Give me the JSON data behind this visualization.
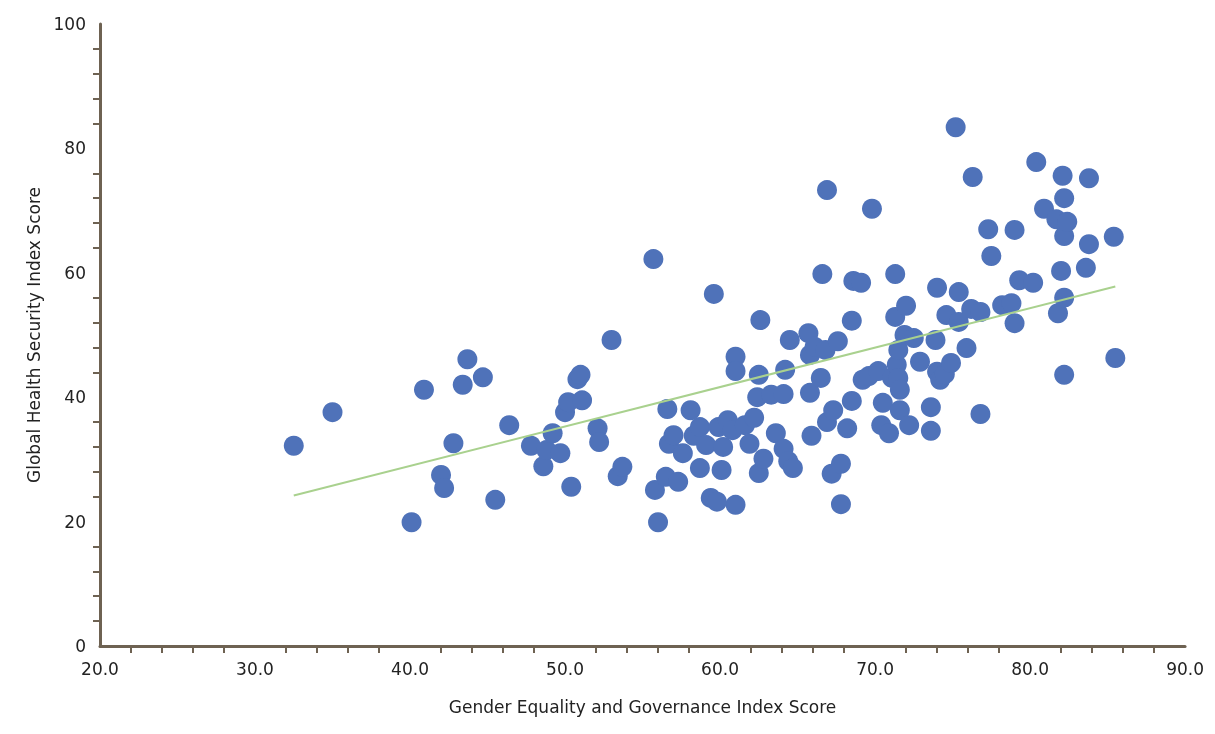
{
  "chart_data": {
    "type": "scatter",
    "xlabel": "Gender Equality and Governance Index Score",
    "ylabel": "Global Health Security Index Score",
    "xlim": [
      20,
      90
    ],
    "xticks": [
      {
        "value": 20,
        "label": "20.0"
      },
      {
        "value": 30,
        "label": "30.0"
      },
      {
        "value": 40,
        "label": "40.0"
      },
      {
        "value": 50,
        "label": "50.0"
      },
      {
        "value": 60,
        "label": "60.0"
      },
      {
        "value": 70,
        "label": "70.0"
      },
      {
        "value": 80,
        "label": "80.0"
      },
      {
        "value": 90,
        "label": "90.0"
      }
    ],
    "ylim": [
      0,
      100
    ],
    "yticks": [
      0,
      20,
      40,
      60,
      80,
      100
    ],
    "grid": false,
    "marker": "circle",
    "series": [
      {
        "color": "#4f72b9",
        "x": [
          32.5,
          35.0,
          40.1,
          40.9,
          42.0,
          42.2,
          42.8,
          43.4,
          43.7,
          44.7,
          45.5,
          46.4,
          47.8,
          48.6,
          48.8,
          49.2,
          49.7,
          50.0,
          50.2,
          50.4,
          50.8,
          51.0,
          51.1,
          52.1,
          52.2,
          53.0,
          53.4,
          53.7,
          55.7,
          55.8,
          56.0,
          56.5,
          56.6,
          56.7,
          57.0,
          57.3,
          57.6,
          58.1,
          58.3,
          58.7,
          58.7,
          59.1,
          59.4,
          59.6,
          59.8,
          59.9,
          60.1,
          60.2,
          60.5,
          60.8,
          61.0,
          61.0,
          61.0,
          61.6,
          61.9,
          62.2,
          62.4,
          62.5,
          62.6,
          62.5,
          62.8,
          63.3,
          63.6,
          64.1,
          64.1,
          64.2,
          64.5,
          64.4,
          64.7,
          65.7,
          65.8,
          65.8,
          65.9,
          66.1,
          66.5,
          66.6,
          66.9,
          66.9,
          66.8,
          67.2,
          67.3,
          67.6,
          67.8,
          67.8,
          68.2,
          68.5,
          68.5,
          68.6,
          69.1,
          69.2,
          69.6,
          69.8,
          70.2,
          70.4,
          70.5,
          70.9,
          71.1,
          71.3,
          71.3,
          71.4,
          71.5,
          71.5,
          71.6,
          71.6,
          71.9,
          72.0,
          72.2,
          72.5,
          72.9,
          73.6,
          73.6,
          73.9,
          74.0,
          74.0,
          74.2,
          74.5,
          74.6,
          74.9,
          75.2,
          75.4,
          75.4,
          75.9,
          76.2,
          76.3,
          76.8,
          76.8,
          77.3,
          77.5,
          78.2,
          78.8,
          79.0,
          79.0,
          79.3,
          80.2,
          80.4,
          80.9,
          81.7,
          81.8,
          82.0,
          82.1,
          82.2,
          82.2,
          82.2,
          82.2,
          82.4,
          83.6,
          83.8,
          83.8,
          85.4,
          85.5
        ],
        "values": [
          32.2,
          37.6,
          19.9,
          41.2,
          27.5,
          25.4,
          32.6,
          42.0,
          46.1,
          43.2,
          23.5,
          35.5,
          32.2,
          28.9,
          31.5,
          34.2,
          31.0,
          37.6,
          39.2,
          25.6,
          42.9,
          43.6,
          39.5,
          35.0,
          32.8,
          49.2,
          27.3,
          28.8,
          62.2,
          25.1,
          19.9,
          27.2,
          38.1,
          32.5,
          33.9,
          26.4,
          31.0,
          37.9,
          33.8,
          35.2,
          28.6,
          32.3,
          23.8,
          56.6,
          23.2,
          35.2,
          28.3,
          32.0,
          36.3,
          34.7,
          22.7,
          46.5,
          44.2,
          35.5,
          32.5,
          36.7,
          40.0,
          27.8,
          52.4,
          43.6,
          30.1,
          40.4,
          34.2,
          31.7,
          40.5,
          44.4,
          49.2,
          29.7,
          28.6,
          50.3,
          40.7,
          46.8,
          33.8,
          48.1,
          43.1,
          59.8,
          73.3,
          36.0,
          47.6,
          27.7,
          37.9,
          49.0,
          29.3,
          22.8,
          35.0,
          39.4,
          52.3,
          58.7,
          58.4,
          42.8,
          43.4,
          70.3,
          44.2,
          35.5,
          39.1,
          34.2,
          43.1,
          59.8,
          52.9,
          45.2,
          47.6,
          43.1,
          41.2,
          37.9,
          50.0,
          54.7,
          35.5,
          49.5,
          45.7,
          38.4,
          34.6,
          49.2,
          57.6,
          44.1,
          42.8,
          43.7,
          53.2,
          45.5,
          83.4,
          52.1,
          56.9,
          47.9,
          54.2,
          75.4,
          53.7,
          37.3,
          67.0,
          62.7,
          54.8,
          55.1,
          66.9,
          51.9,
          58.8,
          58.4,
          77.8,
          70.3,
          68.6,
          53.5,
          60.3,
          75.6,
          72.0,
          65.9,
          56.0,
          43.6,
          68.2,
          60.8,
          64.6,
          75.2,
          65.8,
          46.3
        ]
      },
      {
        "type": "line",
        "color": "#a9d18e",
        "marker": "none",
        "x": [
          32.5,
          85.5
        ],
        "values": [
          24.2,
          57.8
        ]
      }
    ]
  }
}
